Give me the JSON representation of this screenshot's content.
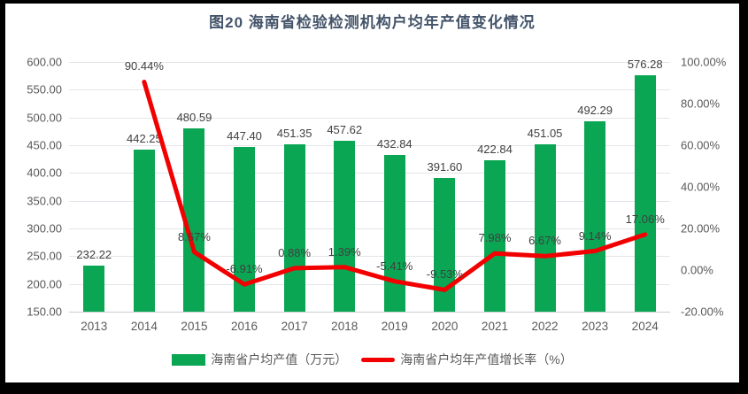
{
  "title": "图20  海南省检验检测机构户均年产值变化情况",
  "colors": {
    "frame": "#000000",
    "background": "#ffffff",
    "bar": "#0aa653",
    "line": "#f20000",
    "grid": "#e2e5e9",
    "axis_text": "#595959",
    "label_text": "#404040",
    "title_text": "#44546a"
  },
  "chart_data": {
    "type": "bar+line",
    "title": "图20  海南省检验检测机构户均年产值变化情况",
    "categories": [
      "2013",
      "2014",
      "2015",
      "2016",
      "2017",
      "2018",
      "2019",
      "2020",
      "2021",
      "2022",
      "2023",
      "2024"
    ],
    "series": [
      {
        "name": "海南省户均产值（万元）",
        "type": "bar",
        "axis": "left",
        "color": "#0aa653",
        "values": [
          232.22,
          442.25,
          480.59,
          447.4,
          451.35,
          457.62,
          432.84,
          391.6,
          422.84,
          451.05,
          492.29,
          576.28
        ],
        "labels": [
          "232.22",
          "442.25",
          "480.59",
          "447.40",
          "451.35",
          "457.62",
          "432.84",
          "391.60",
          "422.84",
          "451.05",
          "492.29",
          "576.28"
        ]
      },
      {
        "name": "海南省户均年产值增长率（%）",
        "type": "line",
        "axis": "right",
        "color": "#f20000",
        "values": [
          null,
          90.44,
          8.67,
          -6.91,
          0.88,
          1.39,
          -5.41,
          -9.53,
          7.98,
          6.67,
          9.14,
          17.06
        ],
        "labels": [
          "",
          "90.44%",
          "8.67%",
          "-6.91%",
          "0.88%",
          "1.39%",
          "-5.41%",
          "-9.53%",
          "7.98%",
          "6.67%",
          "9.14%",
          "17.06%"
        ]
      }
    ],
    "left_axis": {
      "min": 150,
      "max": 600,
      "step": 50,
      "ticks": [
        "600.00",
        "550.00",
        "500.00",
        "450.00",
        "400.00",
        "350.00",
        "300.00",
        "250.00",
        "200.00",
        "150.00"
      ]
    },
    "right_axis": {
      "min": -20,
      "max": 100,
      "step": 20,
      "ticks": [
        "100.00%",
        "80.00%",
        "60.00%",
        "40.00%",
        "20.00%",
        "0.00%",
        "-20.00%"
      ]
    },
    "grid": true,
    "legend_position": "bottom"
  }
}
